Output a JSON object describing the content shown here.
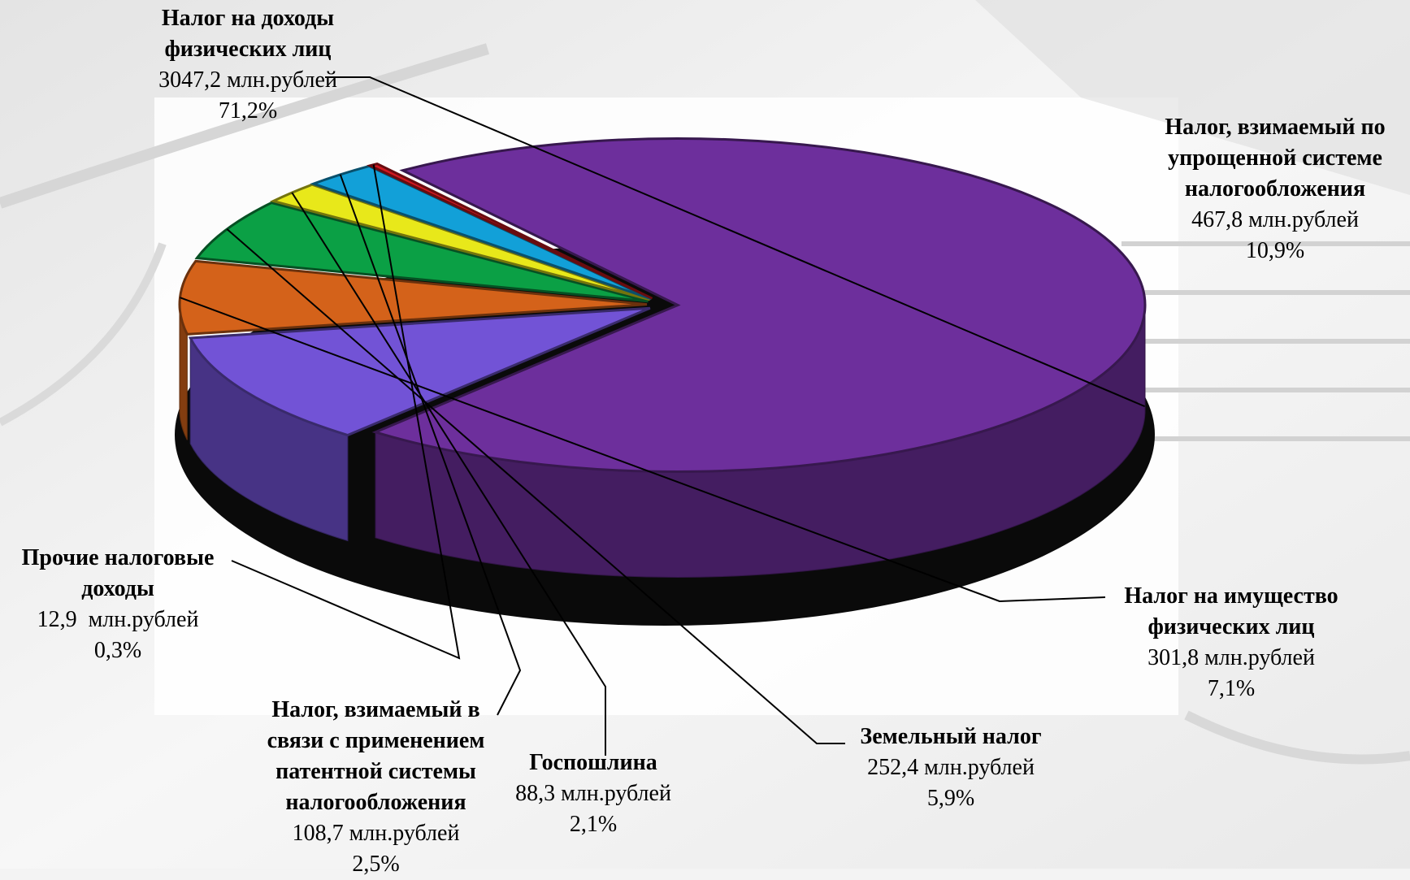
{
  "chart_data": {
    "type": "pie",
    "style": "3d-exploded",
    "unit": "млн.рублей",
    "slices": [
      {
        "label": "Налог на доходы\nфизических лиц",
        "value_text": "3047,2 млн.рублей",
        "value": 3047.2,
        "percent_text": "71,2%",
        "percent": 71.2,
        "color": "#6d2f9c"
      },
      {
        "label": "Налог, взимаемый по\nупрощенной системе\nналогообложения",
        "value_text": "467,8 млн.рублей",
        "value": 467.8,
        "percent_text": "10,9%",
        "percent": 10.9,
        "color": "#7253d6"
      },
      {
        "label": "Налог на имущество\nфизических лиц",
        "value_text": "301,8 млн.рублей",
        "value": 301.8,
        "percent_text": "7,1%",
        "percent": 7.1,
        "color": "#d4621a"
      },
      {
        "label": "Земельный налог",
        "value_text": "252,4 млн.рублей",
        "value": 252.4,
        "percent_text": "5,9%",
        "percent": 5.9,
        "color": "#0ba045"
      },
      {
        "label": "Госпошлина",
        "value_text": "88,3 млн.рублей",
        "value": 88.3,
        "percent_text": "2,1%",
        "percent": 2.1,
        "color": "#e8e81a"
      },
      {
        "label": "Налог, взимаемый в\nсвязи с применением\nпатентной системы\nналогообложения",
        "value_text": "108,7 млн.рублей",
        "value": 108.7,
        "percent_text": "2,5%",
        "percent": 2.5,
        "color": "#12a0d8"
      },
      {
        "label": "Прочие налоговые\nдоходы",
        "value_text": "12,9  млн.рублей",
        "value": 12.9,
        "percent_text": "0,3%",
        "percent": 0.3,
        "color": "#d01820"
      }
    ]
  }
}
